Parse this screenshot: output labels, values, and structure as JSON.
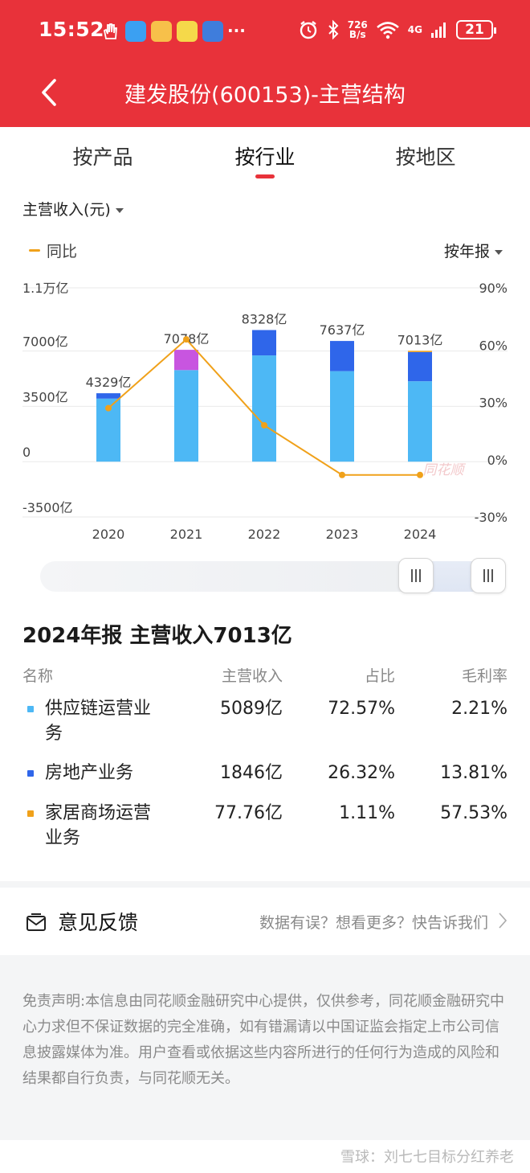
{
  "status_bar": {
    "time": "15:52",
    "net_speed_value": "726",
    "net_speed_unit": "B/s",
    "network": "4G",
    "battery": "21"
  },
  "nav": {
    "title": "建发股份(600153)-主营结构"
  },
  "tabs": [
    {
      "label": "按产品",
      "active": false
    },
    {
      "label": "按行业",
      "active": true
    },
    {
      "label": "按地区",
      "active": false
    }
  ],
  "metric_select": "主营收入(元)",
  "legend": {
    "yoy": "同比"
  },
  "period_select": "按年报",
  "chart_data": {
    "type": "bar",
    "categories": [
      "2020",
      "2021",
      "2022",
      "2023",
      "2024"
    ],
    "bar_labels": [
      "4329亿",
      "7078亿",
      "8328亿",
      "7637亿",
      "7013亿"
    ],
    "totals": [
      4329,
      7078,
      8328,
      7637,
      7013
    ],
    "series": [
      {
        "name": "供应链运营业务",
        "color": "#4db8f5",
        "values": [
          3989,
          5795,
          6722,
          5727,
          5089
        ]
      },
      {
        "name": "房地产业务",
        "color": "#2f66ea",
        "values": [
          340,
          0,
          1606,
          1910,
          1846
        ]
      },
      {
        "name": "家居商场运营业务",
        "color": "#f0a11a",
        "values": [
          0,
          0,
          0,
          0,
          77.76
        ]
      },
      {
        "name": "",
        "color": "#c855e0",
        "values": [
          0,
          1283,
          0,
          0,
          0
        ]
      }
    ],
    "line_series": {
      "name": "同比",
      "color": "#f0a11a",
      "values": [
        27,
        63,
        18,
        -8,
        -8
      ]
    },
    "y_left": {
      "min": -3500,
      "max": 11000,
      "ticks": [
        {
          "value": 11000,
          "label": "1.1万亿"
        },
        {
          "value": 7000,
          "label": "7000亿"
        },
        {
          "value": 3500,
          "label": "3500亿"
        },
        {
          "value": 0,
          "label": "0"
        },
        {
          "value": -3500,
          "label": "-3500亿"
        }
      ]
    },
    "y_right": {
      "min": -30,
      "max": 90,
      "ticks": [
        {
          "value": 90,
          "label": "90%"
        },
        {
          "value": 60,
          "label": "60%"
        },
        {
          "value": 30,
          "label": "30%"
        },
        {
          "value": 0,
          "label": "0%"
        },
        {
          "value": -30,
          "label": "-30%"
        }
      ]
    },
    "watermark": "同花顺"
  },
  "summary": {
    "title": "2024年报 主营收入7013亿"
  },
  "table": {
    "headers": {
      "name": "名称",
      "revenue": "主营收入",
      "ratio": "占比",
      "margin": "毛利率"
    },
    "rows": [
      {
        "name": "供应链运营业务",
        "color": "#4db8f5",
        "revenue": "5089亿",
        "ratio": "72.57%",
        "margin": "2.21%"
      },
      {
        "name": "房地产业务",
        "color": "#2f66ea",
        "revenue": "1846亿",
        "ratio": "26.32%",
        "margin": "13.81%"
      },
      {
        "name": "家居商场运营业务",
        "color": "#f0a11a",
        "revenue": "77.76亿",
        "ratio": "1.11%",
        "margin": "57.53%"
      }
    ]
  },
  "feedback": {
    "title": "意见反馈",
    "hint": "数据有误？想看更多？快告诉我们"
  },
  "disclaimer": "免责声明:本信息由同花顺金融研究中心提供，仅供参考，同花顺金融研究中心力求但不保证数据的完全准确，如有错漏请以中国证监会指定上市公司信息披露媒体为准。用户查看或依据这些内容所进行的任何行为造成的风险和结果都自行负责，与同花顺无关。",
  "watermark": "雪球：刘七七目标分红养老"
}
